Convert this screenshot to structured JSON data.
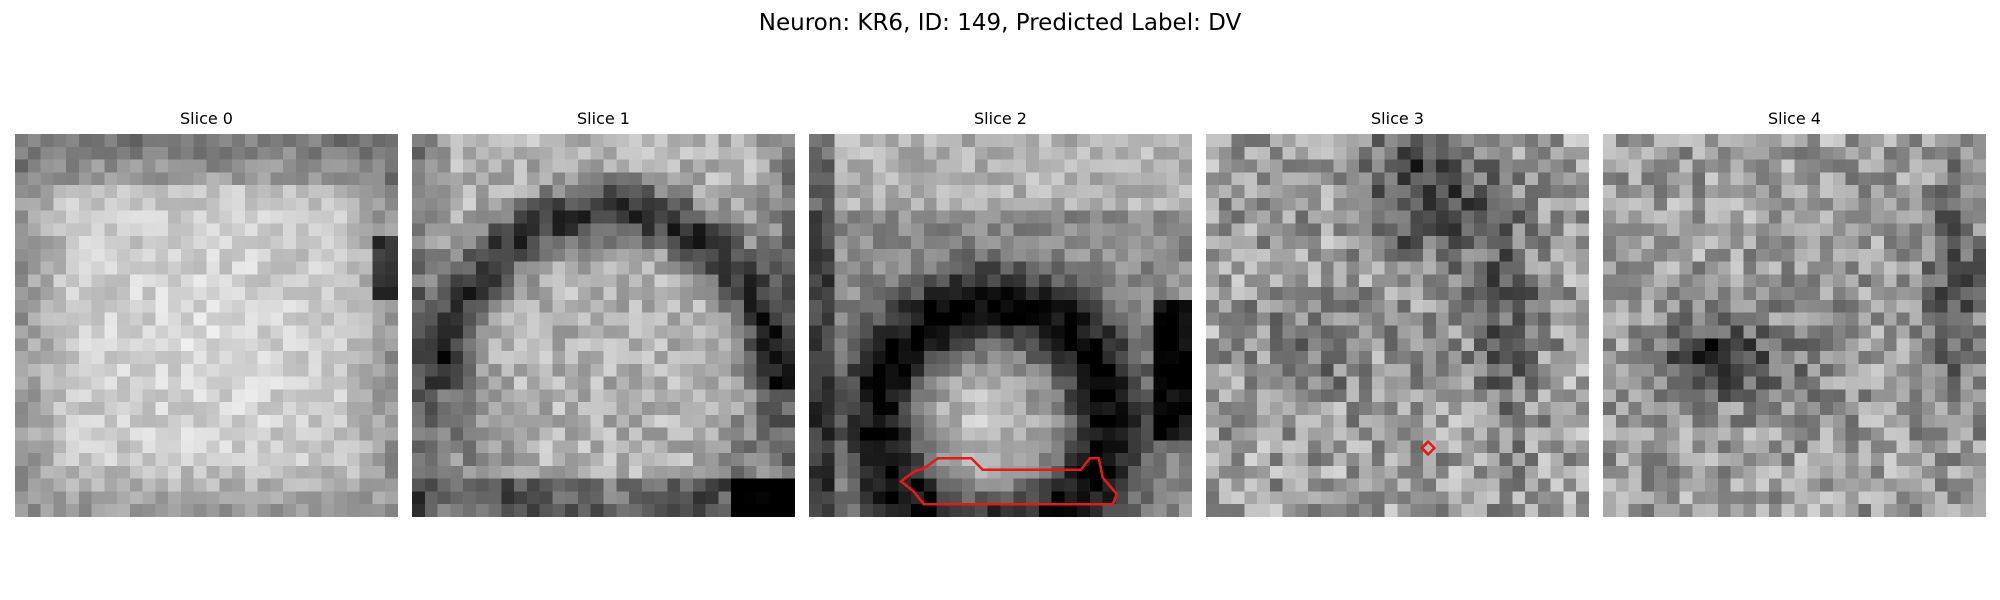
{
  "figure": {
    "title": "Neuron: KR6, ID: 149, Predicted Label: DV"
  },
  "colors": {
    "background": "#ffffff",
    "contour": "#e31a1c",
    "colormap": "gray"
  },
  "image": {
    "grid_size": 30,
    "contour_color_name": "red"
  },
  "slices": [
    {
      "label": "Slice 0",
      "index": 0,
      "has_contour": false
    },
    {
      "label": "Slice 1",
      "index": 1,
      "has_contour": false
    },
    {
      "label": "Slice 2",
      "index": 2,
      "has_contour": true
    },
    {
      "label": "Slice 3",
      "index": 3,
      "has_contour": true
    },
    {
      "label": "Slice 4",
      "index": 4,
      "has_contour": false
    }
  ]
}
